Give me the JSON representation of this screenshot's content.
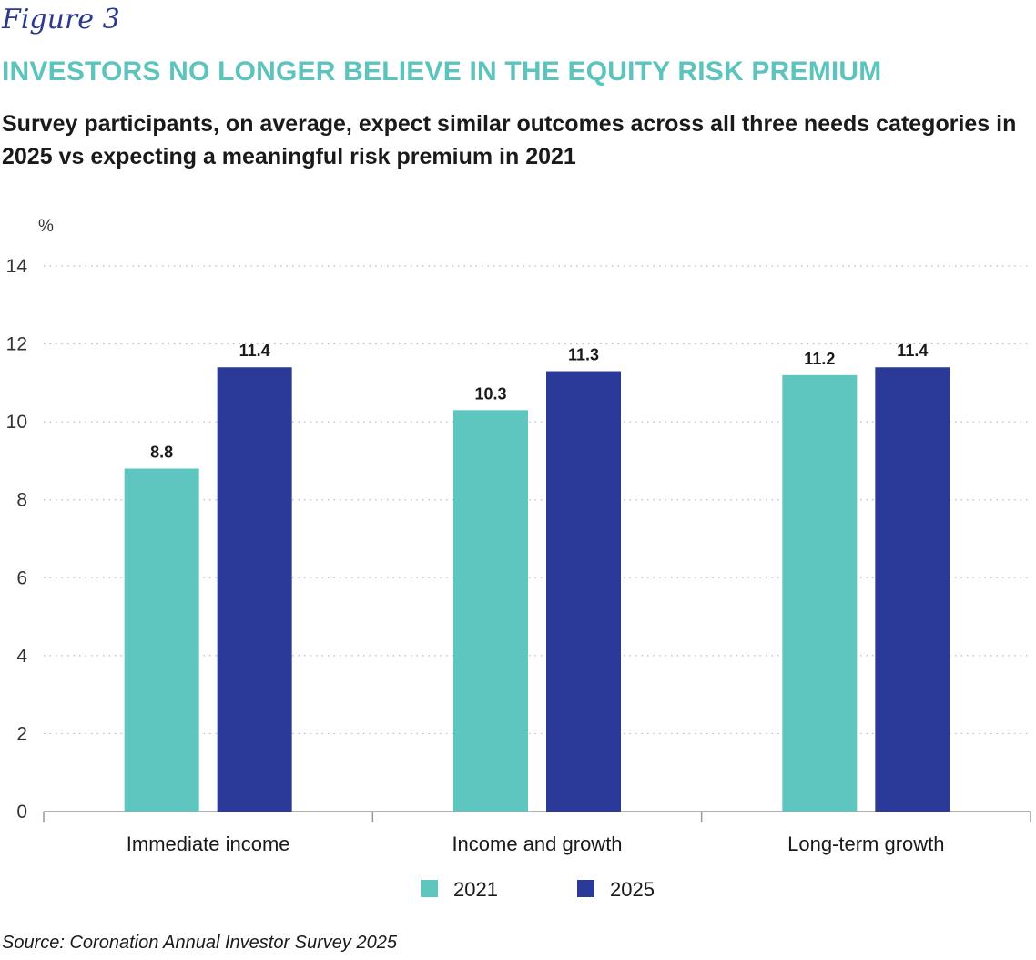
{
  "header": {
    "figure_label": "Figure 3",
    "title": "INVESTORS NO LONGER BELIEVE IN THE EQUITY RISK PREMIUM",
    "subtitle": "Survey participants, on average, expect similar outcomes across all three needs categories in 2025 vs expecting a meaningful risk premium in 2021"
  },
  "footer": {
    "source": "Source: Coronation Annual Investor Survey 2025"
  },
  "colors": {
    "title": "#5cc4bc",
    "figure_label": "#2b3990",
    "series_2021": "#5fc6bf",
    "series_2025": "#2b3a98",
    "grid": "#bbbbbb",
    "axis": "#999999"
  },
  "chart_data": {
    "type": "bar",
    "title": "",
    "ylabel": "%",
    "xlabel": "",
    "ylim": [
      0,
      14
    ],
    "yticks": [
      0,
      2,
      4,
      6,
      8,
      10,
      12,
      14
    ],
    "grid": "horizontal-dotted",
    "legend_position": "bottom-center",
    "categories": [
      "Immediate income",
      "Income and growth",
      "Long-term growth"
    ],
    "series": [
      {
        "name": "2021",
        "color": "#5fc6bf",
        "values": [
          8.8,
          10.3,
          11.2
        ],
        "labels": [
          "8.8",
          "10.3",
          "11.2"
        ]
      },
      {
        "name": "2025",
        "color": "#2b3a98",
        "values": [
          11.4,
          11.3,
          11.4
        ],
        "labels": [
          "11.4",
          "11.3",
          "11.4"
        ]
      }
    ]
  }
}
